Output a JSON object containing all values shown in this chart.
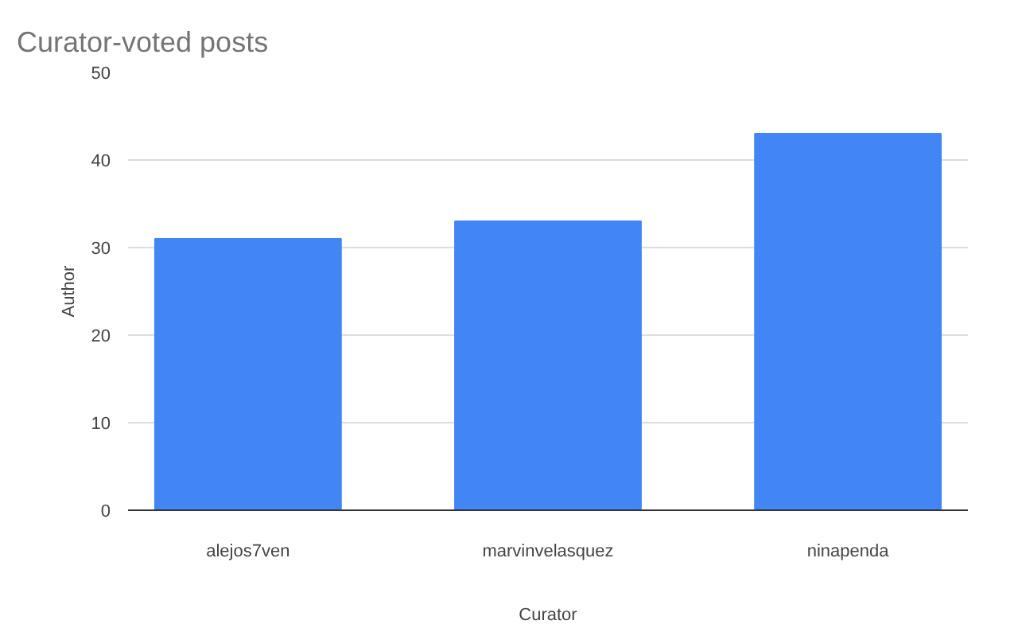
{
  "chart_data": {
    "type": "bar",
    "title": "Curator-voted posts",
    "xlabel": "Curator",
    "ylabel": "Author",
    "categories": [
      "alejos7ven",
      "marvinvelasquez",
      "ninapenda"
    ],
    "values": [
      31,
      33,
      43
    ],
    "color": "#4285f4",
    "ylim": [
      0,
      50
    ],
    "yticks": [
      0,
      10,
      20,
      30,
      40,
      50
    ],
    "grid": "y"
  }
}
